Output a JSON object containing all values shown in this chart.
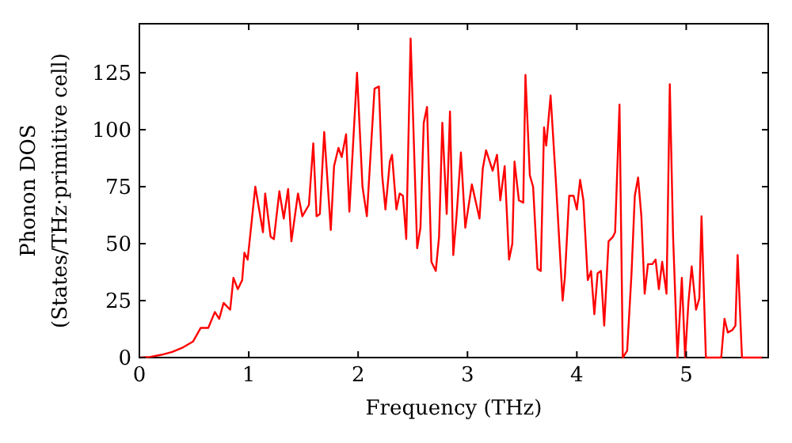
{
  "chart_data": {
    "type": "line",
    "xlabel": "Frequency (THz)",
    "ylabel": "Phonon DOS\n(States/THz·primitive cell)",
    "xlim": [
      0,
      5.75
    ],
    "ylim": [
      0,
      146.5
    ],
    "xticks": [
      0,
      1,
      2,
      3,
      4,
      5
    ],
    "yticks": [
      0,
      25,
      50,
      75,
      100,
      125
    ],
    "grid": false,
    "marker": "none",
    "line_style": "solid",
    "series": [
      {
        "color": "#ff0000",
        "x": [
          0,
          0.1,
          0.2,
          0.3,
          0.4,
          0.49,
          0.56,
          0.63,
          0.69,
          0.73,
          0.77,
          0.83,
          0.86,
          0.9,
          0.94,
          0.96,
          0.99,
          1.06,
          1.13,
          1.15,
          1.2,
          1.23,
          1.28,
          1.32,
          1.36,
          1.39,
          1.45,
          1.49,
          1.55,
          1.59,
          1.62,
          1.65,
          1.69,
          1.75,
          1.78,
          1.82,
          1.85,
          1.89,
          1.92,
          1.99,
          2.04,
          2.08,
          2.15,
          2.19,
          2.22,
          2.25,
          2.29,
          2.31,
          2.35,
          2.38,
          2.41,
          2.44,
          2.48,
          2.54,
          2.57,
          2.6,
          2.63,
          2.67,
          2.71,
          2.74,
          2.77,
          2.81,
          2.84,
          2.87,
          2.9,
          2.94,
          2.98,
          3.04,
          3.11,
          3.14,
          3.17,
          3.23,
          3.27,
          3.3,
          3.34,
          3.38,
          3.41,
          3.43,
          3.47,
          3.51,
          3.53,
          3.57,
          3.6,
          3.64,
          3.67,
          3.7,
          3.72,
          3.76,
          3.81,
          3.87,
          3.89,
          3.93,
          3.97,
          4.0,
          4.03,
          4.06,
          4.1,
          4.13,
          4.16,
          4.19,
          4.22,
          4.25,
          4.29,
          4.33,
          4.35,
          4.39,
          4.42,
          4.46,
          4.5,
          4.53,
          4.56,
          4.59,
          4.62,
          4.65,
          4.69,
          4.72,
          4.75,
          4.78,
          4.82,
          4.85,
          4.88,
          4.92,
          4.96,
          4.99,
          5.02,
          5.05,
          5.09,
          5.12,
          5.14,
          5.18,
          5.32,
          5.35,
          5.38,
          5.42,
          5.45,
          5.47,
          5.51,
          5.7
        ],
        "values": [
          0,
          0.3,
          1.2,
          2.5,
          4.5,
          7,
          13,
          13,
          20,
          17,
          24,
          21,
          35,
          30,
          34,
          46,
          43,
          75,
          55,
          72,
          53,
          52,
          73,
          61,
          74,
          51,
          72,
          62,
          67,
          94,
          62,
          63,
          99,
          56,
          84,
          92,
          88,
          98,
          64,
          125,
          75,
          62,
          118,
          119,
          80,
          65,
          86,
          89,
          65,
          72,
          71,
          52,
          140,
          48,
          57,
          103,
          110,
          42,
          38,
          53,
          103,
          63,
          108,
          45,
          62,
          90,
          57,
          76,
          61,
          83,
          91,
          82,
          89,
          69,
          84,
          43,
          50,
          86,
          69,
          68,
          124,
          80,
          75,
          39,
          38,
          101,
          93,
          115,
          76,
          25,
          35,
          71,
          71,
          65,
          78,
          69,
          34,
          38,
          19,
          37,
          38,
          14,
          51,
          53,
          55,
          111,
          0,
          3,
          37,
          71,
          79,
          62,
          28,
          41,
          41,
          43,
          30,
          42,
          28,
          120,
          53,
          0,
          35,
          0,
          24,
          40,
          21,
          26,
          62,
          0,
          0,
          17,
          11,
          12,
          14,
          45,
          0,
          0
        ]
      }
    ]
  }
}
